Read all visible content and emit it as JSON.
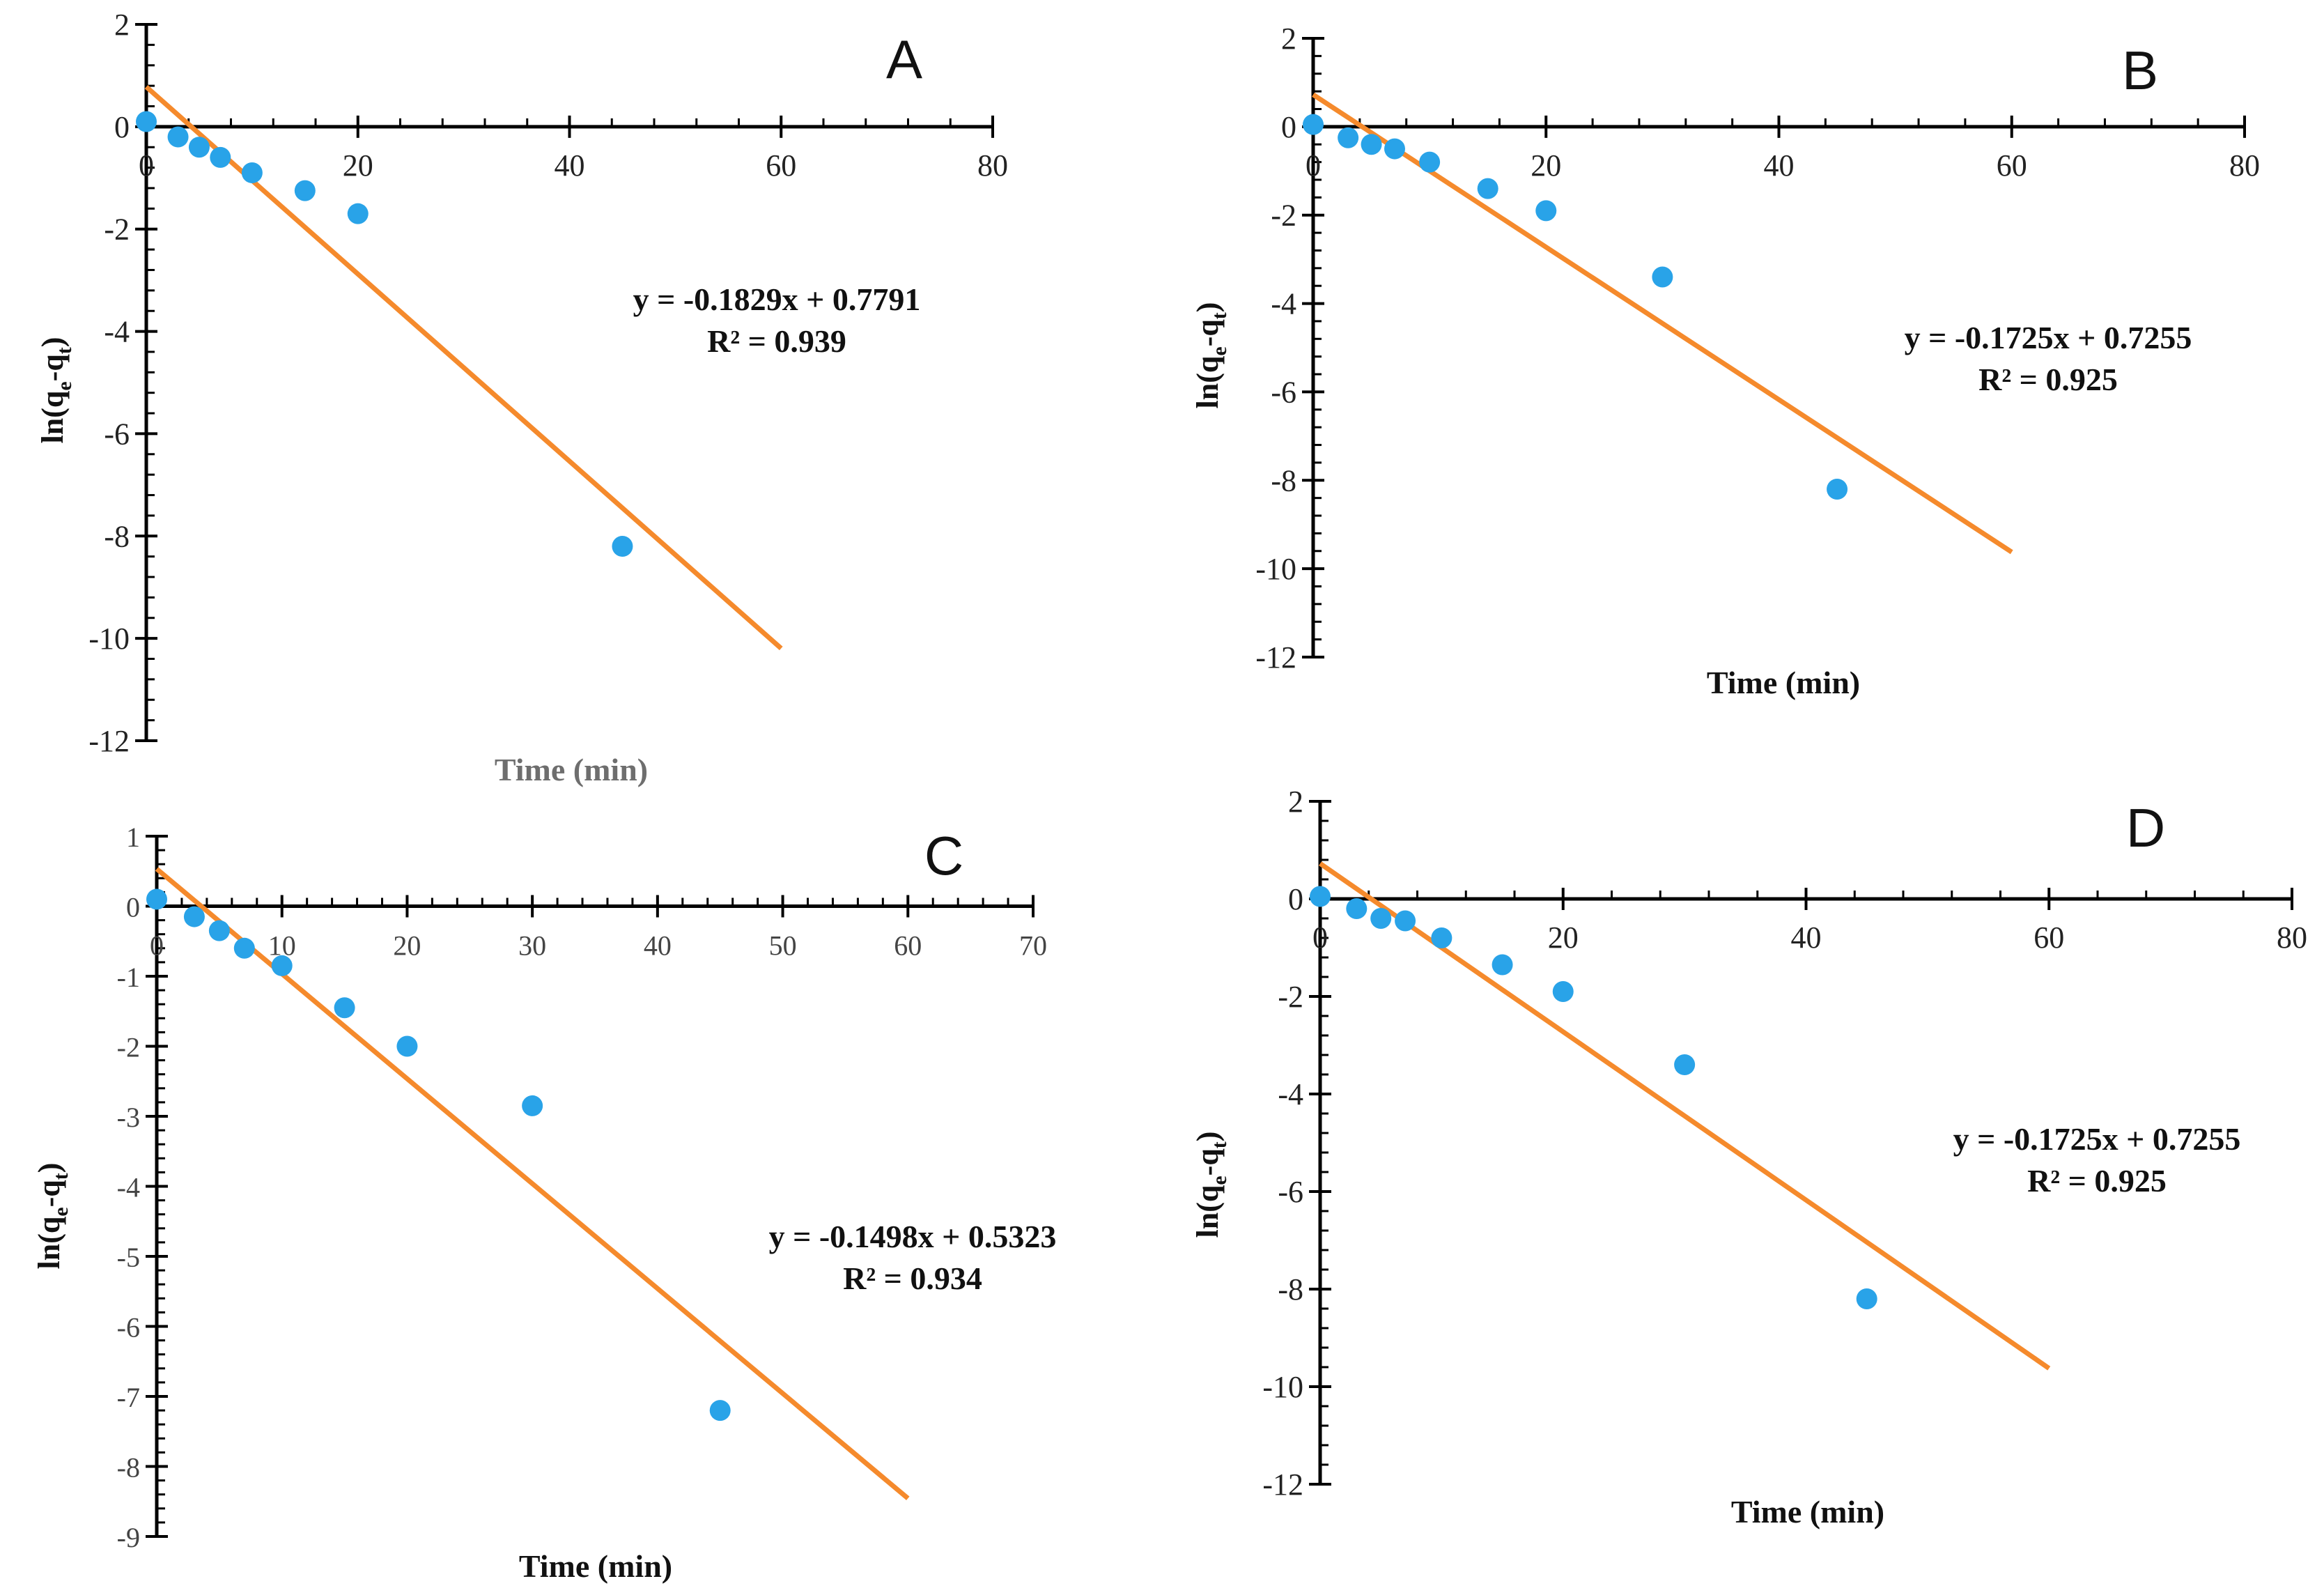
{
  "figure": {
    "background": "#ffffff",
    "point_color": "#29a3e8",
    "line_color": "#f58a2c"
  },
  "chart_data": [
    {
      "panel": "A",
      "type": "scatter",
      "xlabel": "Time (min)",
      "ylabel": "ln(qe-qt)",
      "ylabel_base": "ln(q",
      "ylabel_sub1": "e",
      "ylabel_mid": "-q",
      "ylabel_sub2": "t",
      "ylabel_end": ")",
      "xlim": [
        0,
        80
      ],
      "ylim": [
        -12,
        2
      ],
      "xticks": [
        0,
        20,
        40,
        60,
        80
      ],
      "yticks": [
        2,
        0,
        -2,
        -4,
        -6,
        -8,
        -10,
        -12
      ],
      "points": [
        [
          0,
          0.1
        ],
        [
          3,
          -0.2
        ],
        [
          5,
          -0.4
        ],
        [
          7,
          -0.6
        ],
        [
          10,
          -0.9
        ],
        [
          15,
          -1.25
        ],
        [
          20,
          -1.7
        ],
        [
          45,
          -8.2
        ]
      ],
      "fit": {
        "slope": -0.1829,
        "intercept": 0.7791,
        "x_end": 60
      },
      "equation": "y = -0.1829x + 0.7791",
      "r2": "R² = 0.939"
    },
    {
      "panel": "B",
      "type": "scatter",
      "xlabel": "Time (min)",
      "ylabel": "ln(qe-qt)",
      "ylabel_base": "ln(q",
      "ylabel_sub1": "e",
      "ylabel_mid": "-q",
      "ylabel_sub2": "t",
      "ylabel_end": ")",
      "xlim": [
        0,
        80
      ],
      "ylim": [
        -12,
        2
      ],
      "xticks": [
        0,
        20,
        40,
        60,
        80
      ],
      "yticks": [
        2,
        0,
        -2,
        -4,
        -6,
        -8,
        -10,
        -12
      ],
      "points": [
        [
          0,
          0.05
        ],
        [
          3,
          -0.25
        ],
        [
          5,
          -0.4
        ],
        [
          7,
          -0.5
        ],
        [
          10,
          -0.8
        ],
        [
          15,
          -1.4
        ],
        [
          20,
          -1.9
        ],
        [
          30,
          -3.4
        ],
        [
          45,
          -8.2
        ]
      ],
      "fit": {
        "slope": -0.1725,
        "intercept": 0.7255,
        "x_end": 60
      },
      "equation": "y = -0.1725x + 0.7255",
      "r2": "R² = 0.925"
    },
    {
      "panel": "C",
      "type": "scatter",
      "xlabel": "Time (min)",
      "ylabel": "ln(qe-qt)",
      "ylabel_base": "ln(q",
      "ylabel_sub1": "e",
      "ylabel_mid": "-q",
      "ylabel_sub2": "t",
      "ylabel_end": ")",
      "xlim": [
        0,
        70
      ],
      "ylim": [
        -9,
        1
      ],
      "xticks": [
        0,
        10,
        20,
        30,
        40,
        50,
        60,
        70
      ],
      "yticks": [
        1,
        0,
        -1,
        -2,
        -3,
        -4,
        -5,
        -6,
        -7,
        -8,
        -9
      ],
      "points": [
        [
          0,
          0.1
        ],
        [
          3,
          -0.15
        ],
        [
          5,
          -0.35
        ],
        [
          7,
          -0.6
        ],
        [
          10,
          -0.85
        ],
        [
          15,
          -1.45
        ],
        [
          20,
          -2.0
        ],
        [
          30,
          -2.85
        ],
        [
          45,
          -7.2
        ]
      ],
      "fit": {
        "slope": -0.1498,
        "intercept": 0.5323,
        "x_end": 60
      },
      "equation": "y = -0.1498x + 0.5323",
      "r2": "R² = 0.934"
    },
    {
      "panel": "D",
      "type": "scatter",
      "xlabel": "Time (min)",
      "ylabel": "ln(qe-qt)",
      "ylabel_base": "ln(q",
      "ylabel_sub1": "e",
      "ylabel_mid": "-q",
      "ylabel_sub2": "t",
      "ylabel_end": ")",
      "xlim": [
        0,
        80
      ],
      "ylim": [
        -12,
        2
      ],
      "xticks": [
        0,
        20,
        40,
        60,
        80
      ],
      "yticks": [
        2,
        0,
        -2,
        -4,
        -6,
        -8,
        -10,
        -12
      ],
      "points": [
        [
          0,
          0.05
        ],
        [
          3,
          -0.2
        ],
        [
          5,
          -0.4
        ],
        [
          7,
          -0.45
        ],
        [
          10,
          -0.8
        ],
        [
          15,
          -1.35
        ],
        [
          20,
          -1.9
        ],
        [
          30,
          -3.4
        ],
        [
          45,
          -8.2
        ]
      ],
      "fit": {
        "slope": -0.1725,
        "intercept": 0.7255,
        "x_end": 60
      },
      "equation": "y = -0.1725x + 0.7255",
      "r2": "R² = 0.925"
    }
  ]
}
